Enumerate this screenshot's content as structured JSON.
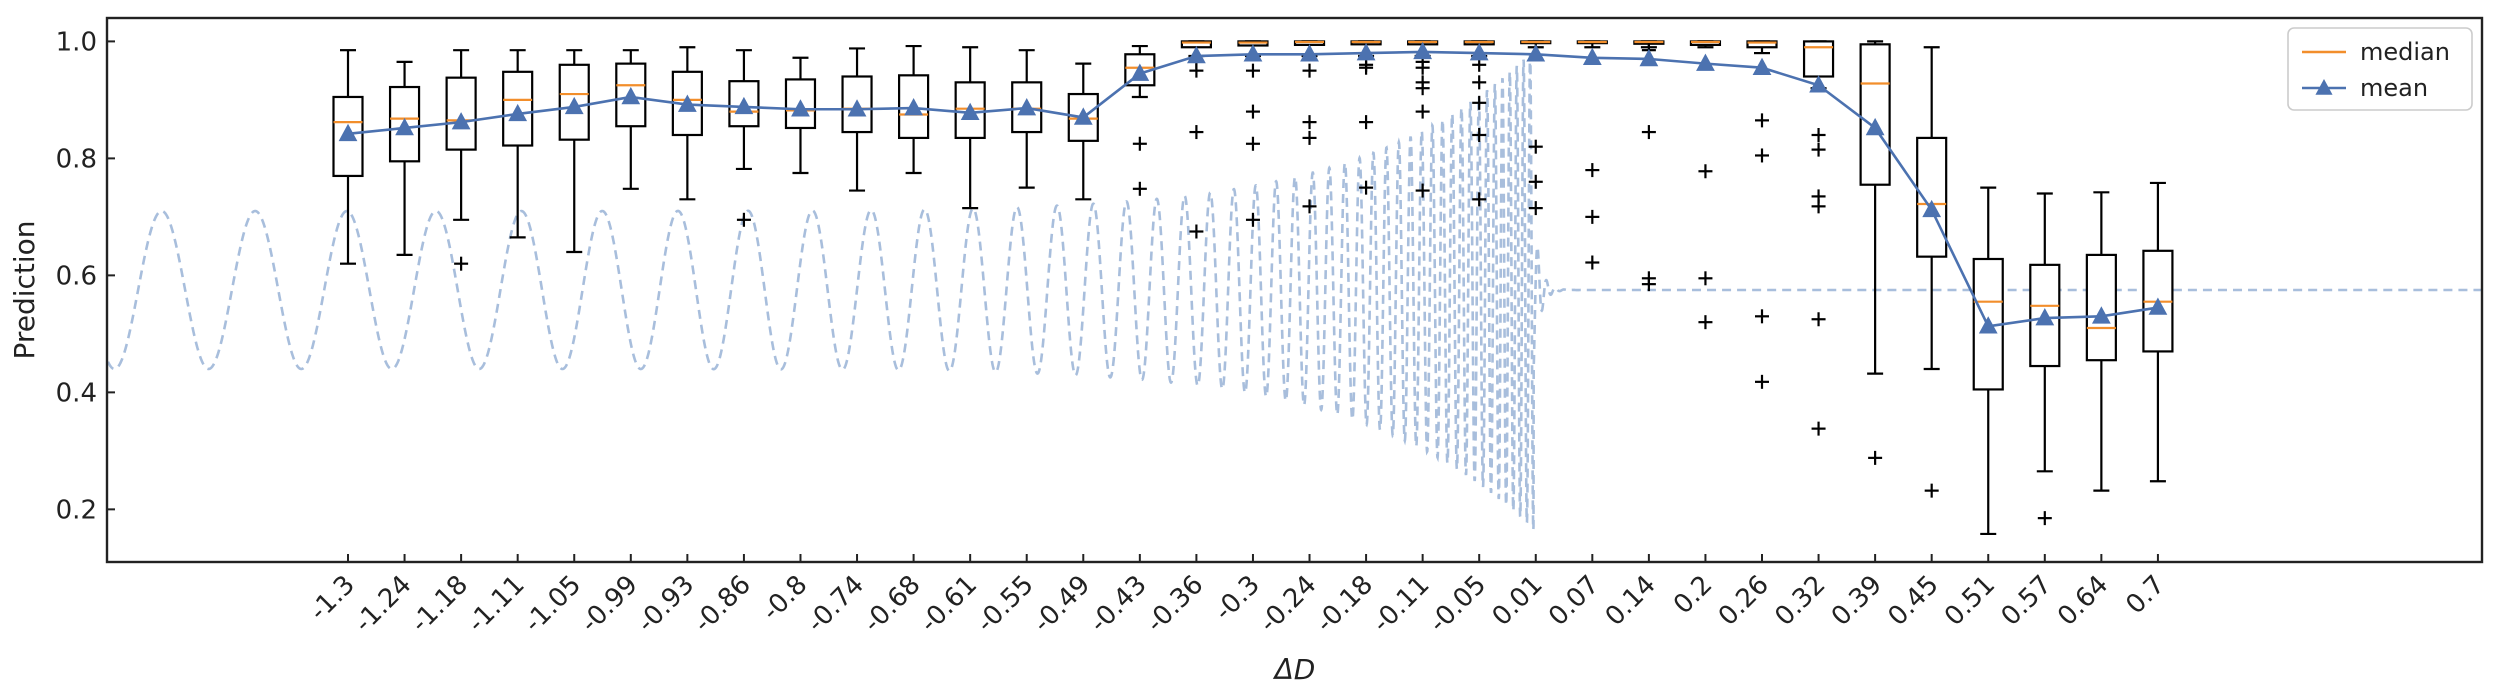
{
  "chart_data": {
    "type": "box",
    "xlabel": "ΔD",
    "ylabel": "Prediction",
    "ylim": [
      0.11,
      1.04
    ],
    "yticks": [
      0.2,
      0.4,
      0.6,
      0.8,
      1.0
    ],
    "ytick_labels": [
      "0.2",
      "0.4",
      "0.6",
      "0.8",
      "1.0"
    ],
    "grid": false,
    "legend": {
      "position": "top-right",
      "entries": [
        {
          "label": "median",
          "color": "#f28e2b",
          "marker": "line"
        },
        {
          "label": "mean",
          "color": "#4c72b0",
          "marker": "triangle"
        }
      ]
    },
    "colors": {
      "box": "#000000",
      "median": "#f28e2b",
      "mean": "#4c72b0",
      "wave": "#a8bedc"
    },
    "categories": [
      "-1.3",
      "-1.24",
      "-1.18",
      "-1.11",
      "-1.05",
      "-0.99",
      "-0.93",
      "-0.86",
      "-0.8",
      "-0.74",
      "-0.68",
      "-0.61",
      "-0.55",
      "-0.49",
      "-0.43",
      "-0.36",
      "-0.3",
      "-0.24",
      "-0.18",
      "-0.11",
      "-0.05",
      "0.01",
      "0.07",
      "0.14",
      "0.2",
      "0.26",
      "0.32",
      "0.39",
      "0.45",
      "0.51",
      "0.57",
      "0.64",
      "0.7"
    ],
    "boxes": [
      {
        "whislo": 0.62,
        "q1": 0.77,
        "med": 0.862,
        "q3": 0.905,
        "whishi": 0.985,
        "mean": 0.842,
        "fliers": []
      },
      {
        "whislo": 0.635,
        "q1": 0.795,
        "med": 0.868,
        "q3": 0.922,
        "whishi": 0.965,
        "mean": 0.852,
        "fliers": []
      },
      {
        "whislo": 0.695,
        "q1": 0.815,
        "med": 0.865,
        "q3": 0.938,
        "whishi": 0.985,
        "mean": 0.862,
        "fliers": [
          0.62
        ]
      },
      {
        "whislo": 0.665,
        "q1": 0.822,
        "med": 0.9,
        "q3": 0.948,
        "whishi": 0.985,
        "mean": 0.876,
        "fliers": []
      },
      {
        "whislo": 0.64,
        "q1": 0.832,
        "med": 0.91,
        "q3": 0.96,
        "whishi": 0.985,
        "mean": 0.888,
        "fliers": []
      },
      {
        "whislo": 0.748,
        "q1": 0.855,
        "med": 0.925,
        "q3": 0.962,
        "whishi": 0.985,
        "mean": 0.905,
        "fliers": []
      },
      {
        "whislo": 0.73,
        "q1": 0.84,
        "med": 0.9,
        "q3": 0.948,
        "whishi": 0.99,
        "mean": 0.892,
        "fliers": []
      },
      {
        "whislo": 0.782,
        "q1": 0.855,
        "med": 0.88,
        "q3": 0.932,
        "whishi": 0.985,
        "mean": 0.888,
        "fliers": [
          0.695
        ]
      },
      {
        "whislo": 0.775,
        "q1": 0.852,
        "med": 0.882,
        "q3": 0.935,
        "whishi": 0.972,
        "mean": 0.884,
        "fliers": []
      },
      {
        "whislo": 0.745,
        "q1": 0.845,
        "med": 0.885,
        "q3": 0.94,
        "whishi": 0.988,
        "mean": 0.884,
        "fliers": []
      },
      {
        "whislo": 0.775,
        "q1": 0.835,
        "med": 0.875,
        "q3": 0.942,
        "whishi": 0.992,
        "mean": 0.886,
        "fliers": []
      },
      {
        "whislo": 0.715,
        "q1": 0.835,
        "med": 0.885,
        "q3": 0.93,
        "whishi": 0.99,
        "mean": 0.878,
        "fliers": []
      },
      {
        "whislo": 0.75,
        "q1": 0.845,
        "med": 0.885,
        "q3": 0.93,
        "whishi": 0.985,
        "mean": 0.886,
        "fliers": []
      },
      {
        "whislo": 0.73,
        "q1": 0.83,
        "med": 0.868,
        "q3": 0.91,
        "whishi": 0.962,
        "mean": 0.87,
        "fliers": []
      },
      {
        "whislo": 0.905,
        "q1": 0.925,
        "med": 0.955,
        "q3": 0.978,
        "whishi": 0.992,
        "mean": 0.945,
        "fliers": [
          0.825,
          0.748
        ]
      },
      {
        "whislo": 0.975,
        "q1": 0.99,
        "med": 0.998,
        "q3": 1.0,
        "whishi": 1.0,
        "mean": 0.975,
        "fliers": [
          0.845,
          0.675,
          0.95,
          0.965
        ]
      },
      {
        "whislo": 0.975,
        "q1": 0.993,
        "med": 0.998,
        "q3": 1.0,
        "whishi": 1.0,
        "mean": 0.978,
        "fliers": [
          0.88,
          0.825,
          0.695,
          0.95
        ]
      },
      {
        "whislo": 0.975,
        "q1": 0.994,
        "med": 0.999,
        "q3": 1.0,
        "whishi": 1.0,
        "mean": 0.978,
        "fliers": [
          0.95,
          0.862,
          0.835,
          0.718
        ]
      },
      {
        "whislo": 0.975,
        "q1": 0.995,
        "med": 0.999,
        "q3": 1.0,
        "whishi": 1.0,
        "mean": 0.98,
        "fliers": [
          0.955,
          0.96,
          0.862,
          0.75
        ]
      },
      {
        "whislo": 0.975,
        "q1": 0.995,
        "med": 0.999,
        "q3": 1.0,
        "whishi": 1.0,
        "mean": 0.982,
        "fliers": [
          0.965,
          0.955,
          0.93,
          0.92,
          0.88,
          0.745
        ]
      },
      {
        "whislo": 0.975,
        "q1": 0.995,
        "med": 0.999,
        "q3": 1.0,
        "whishi": 1.0,
        "mean": 0.98,
        "fliers": [
          0.96,
          0.93,
          0.895,
          0.84,
          0.73
        ]
      },
      {
        "whislo": 0.99,
        "q1": 0.997,
        "med": 0.999,
        "q3": 1.0,
        "whishi": 1.0,
        "mean": 0.978,
        "fliers": [
          0.82,
          0.76,
          0.715
        ]
      },
      {
        "whislo": 0.99,
        "q1": 0.997,
        "med": 0.999,
        "q3": 1.0,
        "whishi": 1.0,
        "mean": 0.972,
        "fliers": [
          0.78,
          0.7,
          0.622
        ]
      },
      {
        "whislo": 0.99,
        "q1": 0.996,
        "med": 0.999,
        "q3": 1.0,
        "whishi": 1.0,
        "mean": 0.97,
        "fliers": [
          0.985,
          0.845,
          0.595,
          0.585
        ]
      },
      {
        "whislo": 0.99,
        "q1": 0.994,
        "med": 0.999,
        "q3": 1.0,
        "whishi": 1.0,
        "mean": 0.962,
        "fliers": [
          0.778,
          0.595,
          0.52
        ]
      },
      {
        "whislo": 0.98,
        "q1": 0.99,
        "med": 0.998,
        "q3": 1.0,
        "whishi": 1.0,
        "mean": 0.955,
        "fliers": [
          0.865,
          0.805,
          0.53,
          0.418
        ]
      },
      {
        "whislo": 0.92,
        "q1": 0.94,
        "med": 0.99,
        "q3": 1.0,
        "whishi": 1.0,
        "mean": 0.925,
        "fliers": [
          0.84,
          0.815,
          0.735,
          0.718,
          0.525,
          0.338
        ]
      },
      {
        "whislo": 0.432,
        "q1": 0.755,
        "med": 0.928,
        "q3": 0.995,
        "whishi": 1.0,
        "mean": 0.852,
        "fliers": [
          0.288
        ]
      },
      {
        "whislo": 0.44,
        "q1": 0.632,
        "med": 0.722,
        "q3": 0.835,
        "whishi": 0.99,
        "mean": 0.712,
        "fliers": [
          0.232
        ]
      },
      {
        "whislo": 0.158,
        "q1": 0.405,
        "med": 0.555,
        "q3": 0.628,
        "whishi": 0.75,
        "mean": 0.513,
        "fliers": []
      },
      {
        "whislo": 0.265,
        "q1": 0.445,
        "med": 0.548,
        "q3": 0.618,
        "whishi": 0.74,
        "mean": 0.527,
        "fliers": [
          0.185
        ]
      },
      {
        "whislo": 0.232,
        "q1": 0.455,
        "med": 0.51,
        "q3": 0.635,
        "whishi": 0.742,
        "mean": 0.53,
        "fliers": []
      },
      {
        "whislo": 0.248,
        "q1": 0.47,
        "med": 0.555,
        "q3": 0.642,
        "whishi": 0.758,
        "mean": 0.545,
        "fliers": []
      }
    ],
    "background_wave": {
      "style": "dashed",
      "center": 0.575,
      "amplitude": 0.135,
      "x_start": -1.82,
      "x_end": 1.7,
      "x_center": 0.01,
      "period_far": 0.105,
      "period_near": 0.007,
      "near_amplitude": 0.41,
      "decay_after_center": 0.04
    }
  }
}
